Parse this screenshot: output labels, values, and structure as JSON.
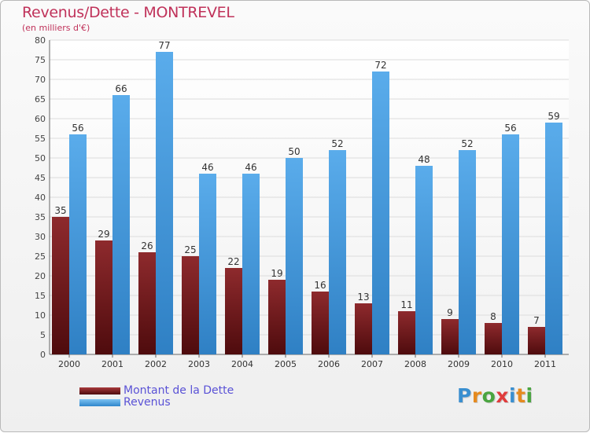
{
  "chart_data": {
    "type": "bar",
    "title": "Revenus/Dette - MONTREVEL",
    "subtitle": "(en milliers d'€)",
    "categories": [
      "2000",
      "2001",
      "2002",
      "2003",
      "2004",
      "2005",
      "2006",
      "2007",
      "2008",
      "2009",
      "2010",
      "2011"
    ],
    "series": [
      {
        "name": "Montant de la Dette",
        "color": "#7a1f22",
        "values": [
          35,
          29,
          26,
          25,
          22,
          19,
          16,
          13,
          11,
          9,
          8,
          7
        ]
      },
      {
        "name": "Revenus",
        "color": "#4aa0e0",
        "values": [
          56,
          66,
          77,
          46,
          46,
          50,
          52,
          72,
          48,
          52,
          56,
          59
        ]
      }
    ],
    "ylim": [
      0,
      80
    ],
    "yticks": [
      0,
      5,
      10,
      15,
      20,
      25,
      30,
      35,
      40,
      45,
      50,
      55,
      60,
      65,
      70,
      75,
      80
    ],
    "grid": true,
    "legend_position": "bottom-left"
  },
  "legend": {
    "debt_label": "Montant de la Dette",
    "revenue_label": "Revenus"
  },
  "logo": {
    "letters": [
      "P",
      "r",
      "o",
      "x",
      "i",
      "t",
      "i"
    ],
    "colors": [
      "#3a8fd0",
      "#e58a1f",
      "#4aa540",
      "#e03c3c",
      "#3a8fd0",
      "#e58a1f",
      "#4aa540"
    ]
  }
}
